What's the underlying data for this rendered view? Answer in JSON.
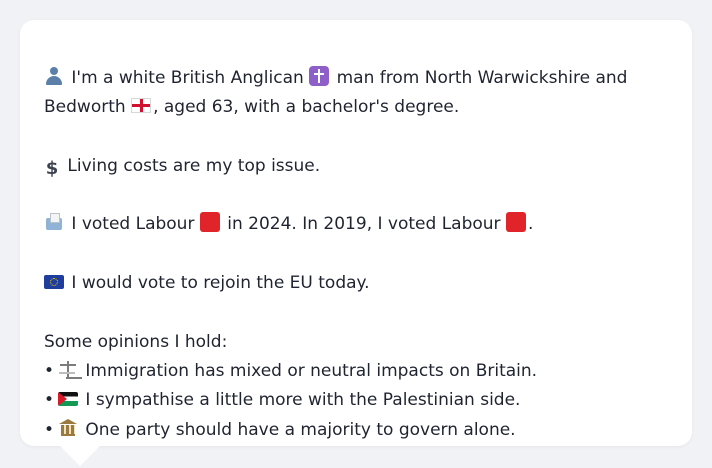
{
  "profile": {
    "intro_line1": " I'm a white British Anglican ",
    "intro_line1_tail": " man from North Warwickshire and",
    "intro_line2_head": "Bedworth ",
    "intro_line2_tail": ", aged 63, with a bachelor's degree.",
    "top_issue": " Living costs are my top issue.",
    "vote_part1": " I voted Labour ",
    "vote_part2": " in 2024. In 2019, I voted Labour ",
    "vote_part3": ".",
    "eu_stance": " I would vote to rejoin the EU today.",
    "opinions_heading": "Some opinions I hold:",
    "opinions": [
      " Immigration has mixed or neutral impacts on Britain.",
      " I sympathise a little more with the Palestinian side.",
      " One party should have a majority to govern alone."
    ],
    "bullet": "•",
    "dollar_glyph": "$"
  },
  "icons": [
    "person-icon",
    "cross-icon",
    "england-flag-icon",
    "dollar-icon",
    "ballot-box-icon",
    "red-square-icon",
    "eu-flag-icon",
    "scales-icon",
    "palestine-flag-icon",
    "classical-building-icon"
  ],
  "colors": {
    "background": "#f1f2f5",
    "card": "#ffffff",
    "text": "#1f2430",
    "labour_red": "#e0242a"
  }
}
